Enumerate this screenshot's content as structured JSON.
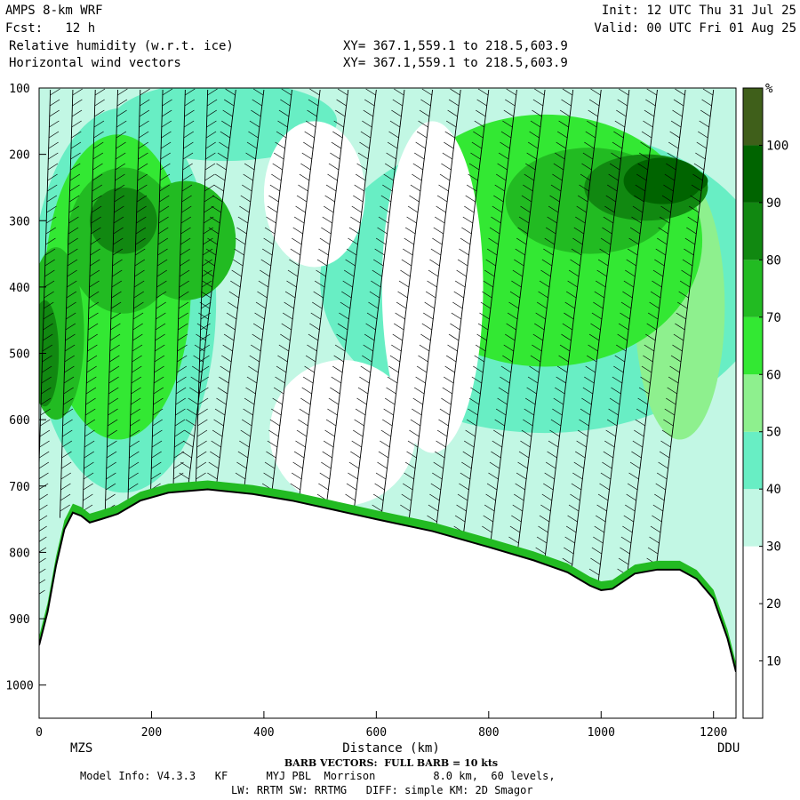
{
  "header": {
    "model": "AMPS 8-km WRF",
    "fcst": "Fcst:   12 h",
    "field1": "Relative humidity (w.r.t. ice)",
    "field2": "Horizontal wind vectors",
    "init": "Init: 12 UTC Thu 31 Jul 25",
    "valid": "Valid: 00 UTC Fri 01 Aug 25",
    "xy1": "XY= 367.1,559.1 to 218.5,603.9",
    "xy2": "XY= 367.1,559.1 to 218.5,603.9"
  },
  "footer": {
    "barb_note": "BARB VECTORS:  FULL BARB = 10 kts",
    "model_info": "Model Info: V4.3.3   KF      MYJ PBL  Morrison         8.0 km,  60 levels,",
    "physics": "LW: RRTM SW: RRTMG   DIFF: simple KM: 2D Smagor"
  },
  "chart_data": {
    "type": "heatmap",
    "xlabel": "Distance (km)",
    "ylabel": "",
    "x_range": [
      0,
      1240
    ],
    "y_range": [
      100,
      1050
    ],
    "y_scale": "linear-inverted",
    "x_ticks": [
      0,
      200,
      400,
      600,
      800,
      1000,
      1200
    ],
    "y_ticks": [
      100,
      200,
      300,
      400,
      500,
      600,
      700,
      800,
      900,
      1000
    ],
    "endpoints": {
      "left": "MZS",
      "right": "DDU"
    },
    "colorbar": {
      "unit": "%",
      "levels": [
        10,
        20,
        30,
        40,
        50,
        60,
        70,
        80,
        90,
        100
      ],
      "colors": [
        "#ffffff",
        "#ffffff",
        "#ffffff",
        "#c2f7e4",
        "#68eec4",
        "#8ef08e",
        "#33e833",
        "#22bb22",
        "#118811",
        "#006400",
        "#3f5f1a"
      ]
    },
    "terrain_pressure_hpa": [
      [
        0,
        940
      ],
      [
        15,
        890
      ],
      [
        30,
        820
      ],
      [
        45,
        765
      ],
      [
        60,
        740
      ],
      [
        75,
        745
      ],
      [
        90,
        755
      ],
      [
        110,
        750
      ],
      [
        140,
        742
      ],
      [
        180,
        722
      ],
      [
        230,
        710
      ],
      [
        300,
        705
      ],
      [
        380,
        712
      ],
      [
        450,
        722
      ],
      [
        520,
        735
      ],
      [
        600,
        750
      ],
      [
        700,
        768
      ],
      [
        800,
        792
      ],
      [
        880,
        812
      ],
      [
        940,
        830
      ],
      [
        980,
        850
      ],
      [
        1000,
        857
      ],
      [
        1020,
        855
      ],
      [
        1060,
        832
      ],
      [
        1100,
        826
      ],
      [
        1140,
        826
      ],
      [
        1170,
        840
      ],
      [
        1200,
        870
      ],
      [
        1225,
        930
      ],
      [
        1240,
        980
      ]
    ],
    "rh_regions": [
      {
        "rh": 45,
        "cx": 150,
        "cy": 420,
        "rx": 165,
        "ry": 290
      },
      {
        "rh": 45,
        "cx": 900,
        "cy": 390,
        "rx": 400,
        "ry": 230
      },
      {
        "rh": 45,
        "cx": 610,
        "cy": 480,
        "rx": 50,
        "ry": 80
      },
      {
        "rh": 45,
        "cx": 330,
        "cy": 150,
        "rx": 200,
        "ry": 60
      },
      {
        "rh": 50,
        "cx": 1140,
        "cy": 430,
        "rx": 80,
        "ry": 200
      },
      {
        "rh": 60,
        "cx": 140,
        "cy": 400,
        "rx": 130,
        "ry": 230
      },
      {
        "rh": 60,
        "cx": 900,
        "cy": 330,
        "rx": 280,
        "ry": 190
      },
      {
        "rh": 70,
        "cx": 150,
        "cy": 330,
        "rx": 100,
        "ry": 110
      },
      {
        "rh": 70,
        "cx": 30,
        "cy": 470,
        "rx": 50,
        "ry": 130
      },
      {
        "rh": 70,
        "cx": 260,
        "cy": 330,
        "rx": 90,
        "ry": 90
      },
      {
        "rh": 70,
        "cx": 980,
        "cy": 270,
        "rx": 150,
        "ry": 80
      },
      {
        "rh": 80,
        "cx": 150,
        "cy": 300,
        "rx": 60,
        "ry": 50
      },
      {
        "rh": 80,
        "cx": 1080,
        "cy": 250,
        "rx": 110,
        "ry": 50
      },
      {
        "rh": 80,
        "cx": 10,
        "cy": 500,
        "rx": 25,
        "ry": 80
      },
      {
        "rh": 90,
        "cx": 1110,
        "cy": 240,
        "rx": 70,
        "ry": 35
      },
      {
        "rh": 95,
        "cx": 1140,
        "cy": 240,
        "rx": 50,
        "ry": 20
      }
    ],
    "clear_regions": [
      {
        "cx": 490,
        "cy": 260,
        "rx": 90,
        "ry": 110
      },
      {
        "cx": 700,
        "cy": 400,
        "rx": 90,
        "ry": 250
      },
      {
        "cx": 540,
        "cy": 620,
        "rx": 130,
        "ry": 110
      }
    ],
    "barb_columns_km": [
      20,
      60,
      100,
      140,
      180,
      220,
      260,
      300,
      350,
      400,
      450,
      500,
      550,
      600,
      650,
      700,
      750,
      800,
      850,
      900,
      950,
      1000,
      1050,
      1100,
      1150,
      1200
    ]
  }
}
